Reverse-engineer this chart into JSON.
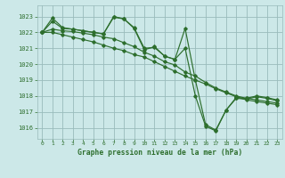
{
  "background_color": "#cce8e8",
  "grid_color": "#99bbbb",
  "line_color": "#2d6e2d",
  "title": "Graphe pression niveau de la mer (hPa)",
  "xlim": [
    -0.5,
    23.5
  ],
  "ylim": [
    1015.3,
    1023.7
  ],
  "yticks": [
    1016,
    1017,
    1018,
    1019,
    1020,
    1021,
    1022,
    1023
  ],
  "xticks": [
    0,
    1,
    2,
    3,
    4,
    5,
    6,
    7,
    8,
    9,
    10,
    11,
    12,
    13,
    14,
    15,
    16,
    17,
    18,
    19,
    20,
    21,
    22,
    23
  ],
  "series": [
    [
      1022.0,
      1022.9,
      1022.3,
      1022.2,
      1022.1,
      1022.0,
      1021.9,
      1023.0,
      1022.85,
      1022.3,
      1021.0,
      1021.05,
      1020.5,
      1020.3,
      1021.0,
      1018.0,
      1016.1,
      1015.8,
      1017.1,
      1017.9,
      1017.85,
      1018.0,
      1017.9,
      1017.75
    ],
    [
      1022.0,
      1022.7,
      1022.25,
      1022.2,
      1022.1,
      1022.0,
      1021.9,
      1022.95,
      1022.85,
      1022.25,
      1020.9,
      1021.1,
      1020.5,
      1020.3,
      1022.25,
      1019.0,
      1016.2,
      1015.85,
      1017.1,
      1017.85,
      1017.8,
      1017.95,
      1017.85,
      1017.7
    ],
    [
      1022.0,
      1022.2,
      1022.1,
      1022.05,
      1021.95,
      1021.85,
      1021.7,
      1021.6,
      1021.35,
      1021.1,
      1020.75,
      1020.5,
      1020.15,
      1019.95,
      1019.5,
      1019.25,
      1018.85,
      1018.5,
      1018.25,
      1018.0,
      1017.85,
      1017.75,
      1017.65,
      1017.55
    ],
    [
      1022.0,
      1022.0,
      1021.85,
      1021.7,
      1021.55,
      1021.4,
      1021.2,
      1021.0,
      1020.85,
      1020.6,
      1020.45,
      1020.15,
      1019.85,
      1019.55,
      1019.25,
      1019.0,
      1018.75,
      1018.45,
      1018.2,
      1017.95,
      1017.75,
      1017.65,
      1017.55,
      1017.45
    ]
  ]
}
